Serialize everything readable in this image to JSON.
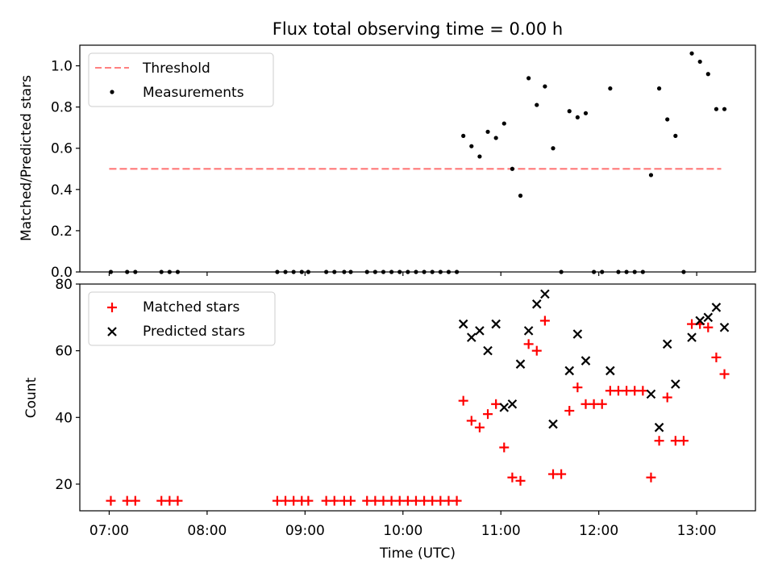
{
  "chart_data": [
    {
      "type": "scatter",
      "title": "Flux total observing time = 0.00 h",
      "ylabel": "Matched/Predicted stars",
      "xlim": [
        "06:42",
        "13:36"
      ],
      "ylim": [
        0,
        1.1
      ],
      "yticks": [
        "0.0",
        "0.2",
        "0.4",
        "0.6",
        "0.8",
        "1.0"
      ],
      "yticks_values": [
        0,
        0.2,
        0.4,
        0.6,
        0.8,
        1.0
      ],
      "grid": false,
      "legend": "top-left",
      "threshold": {
        "name": "Threshold",
        "value": 0.5,
        "x_start": "07:00",
        "x_end": "13:15",
        "color": "#ff8080",
        "style": "dashed"
      },
      "series": [
        {
          "name": "Measurements",
          "color": "#000000",
          "marker": "dot",
          "points": [
            [
              "07:01",
              0
            ],
            [
              "07:11",
              0
            ],
            [
              "07:16",
              0
            ],
            [
              "07:32",
              0
            ],
            [
              "07:37",
              0
            ],
            [
              "07:42",
              0
            ],
            [
              "08:43",
              0
            ],
            [
              "08:48",
              0
            ],
            [
              "08:53",
              0
            ],
            [
              "08:58",
              0
            ],
            [
              "09:02",
              0
            ],
            [
              "09:13",
              0
            ],
            [
              "09:18",
              0
            ],
            [
              "09:24",
              0
            ],
            [
              "09:28",
              0
            ],
            [
              "09:38",
              0
            ],
            [
              "09:43",
              0
            ],
            [
              "09:48",
              0
            ],
            [
              "09:53",
              0
            ],
            [
              "09:58",
              0
            ],
            [
              "10:03",
              0
            ],
            [
              "10:08",
              0
            ],
            [
              "10:13",
              0
            ],
            [
              "10:18",
              0
            ],
            [
              "10:23",
              0
            ],
            [
              "10:28",
              0
            ],
            [
              "10:33",
              0
            ],
            [
              "10:37",
              0.66
            ],
            [
              "10:42",
              0.61
            ],
            [
              "10:47",
              0.56
            ],
            [
              "10:52",
              0.68
            ],
            [
              "10:57",
              0.65
            ],
            [
              "11:02",
              0.72
            ],
            [
              "11:07",
              0.5
            ],
            [
              "11:12",
              0.37
            ],
            [
              "11:17",
              0.94
            ],
            [
              "11:22",
              0.81
            ],
            [
              "11:27",
              0.9
            ],
            [
              "11:32",
              0.6
            ],
            [
              "11:37",
              0
            ],
            [
              "11:42",
              0.78
            ],
            [
              "11:47",
              0.75
            ],
            [
              "11:52",
              0.77
            ],
            [
              "11:57",
              0
            ],
            [
              "12:02",
              0
            ],
            [
              "12:07",
              0.89
            ],
            [
              "12:12",
              0
            ],
            [
              "12:17",
              0
            ],
            [
              "12:22",
              0
            ],
            [
              "12:27",
              0
            ],
            [
              "12:32",
              0.47
            ],
            [
              "12:37",
              0.89
            ],
            [
              "12:42",
              0.74
            ],
            [
              "12:47",
              0.66
            ],
            [
              "12:52",
              0
            ],
            [
              "12:57",
              1.06
            ],
            [
              "13:02",
              1.02
            ],
            [
              "13:07",
              0.96
            ],
            [
              "13:12",
              0.79
            ],
            [
              "13:17",
              0.79
            ]
          ]
        }
      ]
    },
    {
      "type": "scatter",
      "xlabel": "Time (UTC)",
      "ylabel": "Count",
      "xlim": [
        "06:42",
        "13:36"
      ],
      "ylim": [
        12,
        80
      ],
      "xticks": [
        "07:00",
        "08:00",
        "09:00",
        "10:00",
        "11:00",
        "12:00",
        "13:00"
      ],
      "yticks": [
        "20",
        "40",
        "60",
        "80"
      ],
      "yticks_values": [
        20,
        40,
        60,
        80
      ],
      "grid": false,
      "legend": "top-left",
      "series": [
        {
          "name": "Matched stars",
          "color": "#ff0000",
          "marker": "plus",
          "points": [
            [
              "07:01",
              15
            ],
            [
              "07:11",
              15
            ],
            [
              "07:16",
              15
            ],
            [
              "07:32",
              15
            ],
            [
              "07:37",
              15
            ],
            [
              "07:42",
              15
            ],
            [
              "08:43",
              15
            ],
            [
              "08:48",
              15
            ],
            [
              "08:53",
              15
            ],
            [
              "08:58",
              15
            ],
            [
              "09:02",
              15
            ],
            [
              "09:13",
              15
            ],
            [
              "09:18",
              15
            ],
            [
              "09:24",
              15
            ],
            [
              "09:28",
              15
            ],
            [
              "09:38",
              15
            ],
            [
              "09:43",
              15
            ],
            [
              "09:48",
              15
            ],
            [
              "09:53",
              15
            ],
            [
              "09:58",
              15
            ],
            [
              "10:03",
              15
            ],
            [
              "10:08",
              15
            ],
            [
              "10:13",
              15
            ],
            [
              "10:18",
              15
            ],
            [
              "10:23",
              15
            ],
            [
              "10:28",
              15
            ],
            [
              "10:33",
              15
            ],
            [
              "10:37",
              45
            ],
            [
              "10:42",
              39
            ],
            [
              "10:47",
              37
            ],
            [
              "10:52",
              41
            ],
            [
              "10:57",
              44
            ],
            [
              "11:02",
              31
            ],
            [
              "11:07",
              22
            ],
            [
              "11:12",
              21
            ],
            [
              "11:17",
              62
            ],
            [
              "11:22",
              60
            ],
            [
              "11:27",
              69
            ],
            [
              "11:32",
              23
            ],
            [
              "11:37",
              23
            ],
            [
              "11:42",
              42
            ],
            [
              "11:47",
              49
            ],
            [
              "11:52",
              44
            ],
            [
              "11:57",
              44
            ],
            [
              "12:02",
              44
            ],
            [
              "12:07",
              48
            ],
            [
              "12:12",
              48
            ],
            [
              "12:17",
              48
            ],
            [
              "12:22",
              48
            ],
            [
              "12:27",
              48
            ],
            [
              "12:32",
              22
            ],
            [
              "12:37",
              33
            ],
            [
              "12:42",
              46
            ],
            [
              "12:47",
              33
            ],
            [
              "12:52",
              33
            ],
            [
              "12:57",
              68
            ],
            [
              "13:02",
              68
            ],
            [
              "13:07",
              67
            ],
            [
              "13:12",
              58
            ],
            [
              "13:17",
              53
            ]
          ]
        },
        {
          "name": "Predicted stars",
          "color": "#000000",
          "marker": "x",
          "points": [
            [
              "10:37",
              68
            ],
            [
              "10:42",
              64
            ],
            [
              "10:47",
              66
            ],
            [
              "10:52",
              60
            ],
            [
              "10:57",
              68
            ],
            [
              "11:02",
              43
            ],
            [
              "11:07",
              44
            ],
            [
              "11:12",
              56
            ],
            [
              "11:17",
              66
            ],
            [
              "11:22",
              74
            ],
            [
              "11:27",
              77
            ],
            [
              "11:32",
              38
            ],
            [
              "11:42",
              54
            ],
            [
              "11:47",
              65
            ],
            [
              "11:52",
              57
            ],
            [
              "12:07",
              54
            ],
            [
              "12:32",
              47
            ],
            [
              "12:37",
              37
            ],
            [
              "12:42",
              62
            ],
            [
              "12:47",
              50
            ],
            [
              "12:57",
              64
            ],
            [
              "13:02",
              69
            ],
            [
              "13:07",
              70
            ],
            [
              "13:12",
              73
            ],
            [
              "13:17",
              67
            ]
          ]
        }
      ]
    }
  ]
}
